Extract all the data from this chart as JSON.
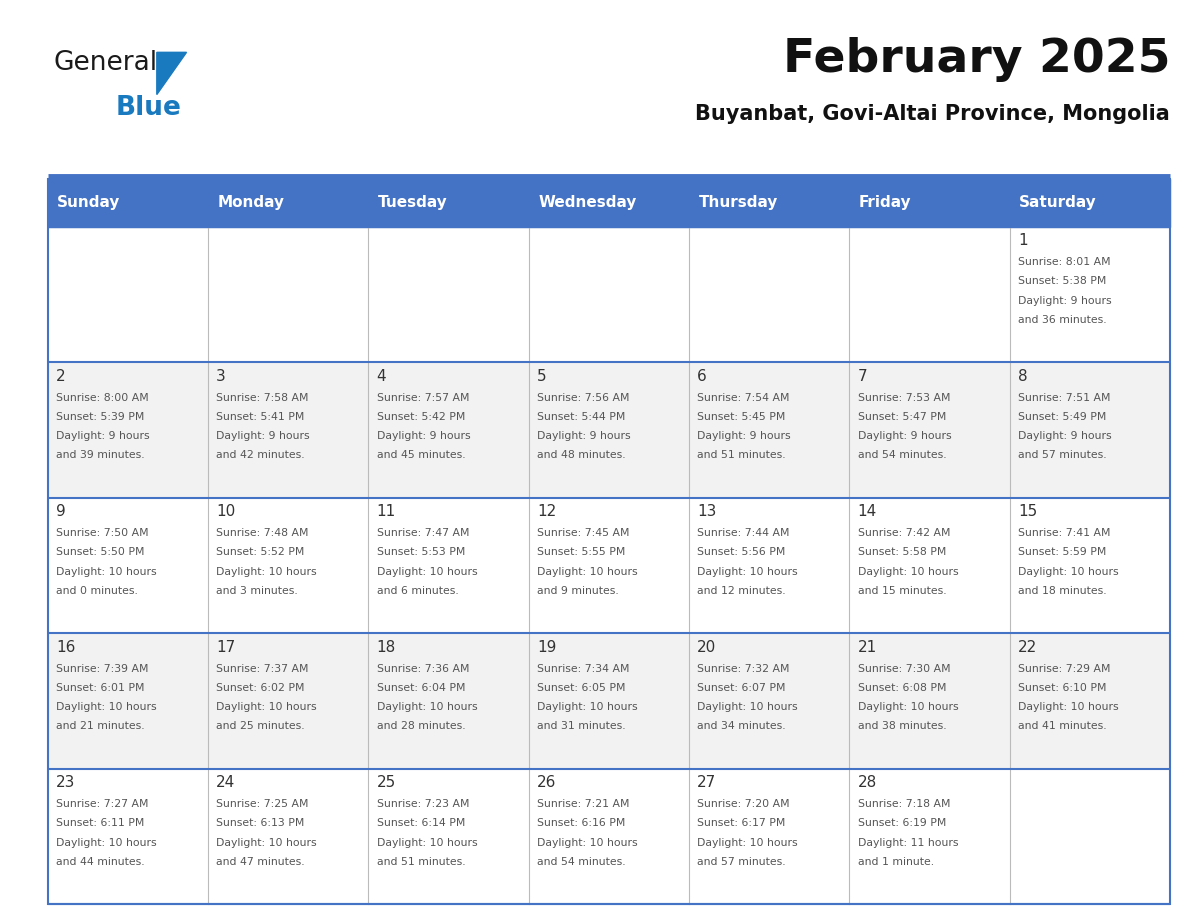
{
  "title": "February 2025",
  "subtitle": "Buyanbat, Govi-Altai Province, Mongolia",
  "days_of_week": [
    "Sunday",
    "Monday",
    "Tuesday",
    "Wednesday",
    "Thursday",
    "Friday",
    "Saturday"
  ],
  "header_bg": "#4472C4",
  "header_text_color": "#FFFFFF",
  "cell_bg_odd": "#F2F2F2",
  "cell_bg_even": "#FFFFFF",
  "border_color": "#4472C4",
  "text_color": "#555555",
  "day_number_color": "#333333",
  "calendar": [
    [
      null,
      null,
      null,
      null,
      null,
      null,
      1
    ],
    [
      2,
      3,
      4,
      5,
      6,
      7,
      8
    ],
    [
      9,
      10,
      11,
      12,
      13,
      14,
      15
    ],
    [
      16,
      17,
      18,
      19,
      20,
      21,
      22
    ],
    [
      23,
      24,
      25,
      26,
      27,
      28,
      null
    ]
  ],
  "sunrise_data": {
    "1": {
      "sunrise": "8:01 AM",
      "sunset": "5:38 PM",
      "daylight_line1": "Daylight: 9 hours",
      "daylight_line2": "and 36 minutes."
    },
    "2": {
      "sunrise": "8:00 AM",
      "sunset": "5:39 PM",
      "daylight_line1": "Daylight: 9 hours",
      "daylight_line2": "and 39 minutes."
    },
    "3": {
      "sunrise": "7:58 AM",
      "sunset": "5:41 PM",
      "daylight_line1": "Daylight: 9 hours",
      "daylight_line2": "and 42 minutes."
    },
    "4": {
      "sunrise": "7:57 AM",
      "sunset": "5:42 PM",
      "daylight_line1": "Daylight: 9 hours",
      "daylight_line2": "and 45 minutes."
    },
    "5": {
      "sunrise": "7:56 AM",
      "sunset": "5:44 PM",
      "daylight_line1": "Daylight: 9 hours",
      "daylight_line2": "and 48 minutes."
    },
    "6": {
      "sunrise": "7:54 AM",
      "sunset": "5:45 PM",
      "daylight_line1": "Daylight: 9 hours",
      "daylight_line2": "and 51 minutes."
    },
    "7": {
      "sunrise": "7:53 AM",
      "sunset": "5:47 PM",
      "daylight_line1": "Daylight: 9 hours",
      "daylight_line2": "and 54 minutes."
    },
    "8": {
      "sunrise": "7:51 AM",
      "sunset": "5:49 PM",
      "daylight_line1": "Daylight: 9 hours",
      "daylight_line2": "and 57 minutes."
    },
    "9": {
      "sunrise": "7:50 AM",
      "sunset": "5:50 PM",
      "daylight_line1": "Daylight: 10 hours",
      "daylight_line2": "and 0 minutes."
    },
    "10": {
      "sunrise": "7:48 AM",
      "sunset": "5:52 PM",
      "daylight_line1": "Daylight: 10 hours",
      "daylight_line2": "and 3 minutes."
    },
    "11": {
      "sunrise": "7:47 AM",
      "sunset": "5:53 PM",
      "daylight_line1": "Daylight: 10 hours",
      "daylight_line2": "and 6 minutes."
    },
    "12": {
      "sunrise": "7:45 AM",
      "sunset": "5:55 PM",
      "daylight_line1": "Daylight: 10 hours",
      "daylight_line2": "and 9 minutes."
    },
    "13": {
      "sunrise": "7:44 AM",
      "sunset": "5:56 PM",
      "daylight_line1": "Daylight: 10 hours",
      "daylight_line2": "and 12 minutes."
    },
    "14": {
      "sunrise": "7:42 AM",
      "sunset": "5:58 PM",
      "daylight_line1": "Daylight: 10 hours",
      "daylight_line2": "and 15 minutes."
    },
    "15": {
      "sunrise": "7:41 AM",
      "sunset": "5:59 PM",
      "daylight_line1": "Daylight: 10 hours",
      "daylight_line2": "and 18 minutes."
    },
    "16": {
      "sunrise": "7:39 AM",
      "sunset": "6:01 PM",
      "daylight_line1": "Daylight: 10 hours",
      "daylight_line2": "and 21 minutes."
    },
    "17": {
      "sunrise": "7:37 AM",
      "sunset": "6:02 PM",
      "daylight_line1": "Daylight: 10 hours",
      "daylight_line2": "and 25 minutes."
    },
    "18": {
      "sunrise": "7:36 AM",
      "sunset": "6:04 PM",
      "daylight_line1": "Daylight: 10 hours",
      "daylight_line2": "and 28 minutes."
    },
    "19": {
      "sunrise": "7:34 AM",
      "sunset": "6:05 PM",
      "daylight_line1": "Daylight: 10 hours",
      "daylight_line2": "and 31 minutes."
    },
    "20": {
      "sunrise": "7:32 AM",
      "sunset": "6:07 PM",
      "daylight_line1": "Daylight: 10 hours",
      "daylight_line2": "and 34 minutes."
    },
    "21": {
      "sunrise": "7:30 AM",
      "sunset": "6:08 PM",
      "daylight_line1": "Daylight: 10 hours",
      "daylight_line2": "and 38 minutes."
    },
    "22": {
      "sunrise": "7:29 AM",
      "sunset": "6:10 PM",
      "daylight_line1": "Daylight: 10 hours",
      "daylight_line2": "and 41 minutes."
    },
    "23": {
      "sunrise": "7:27 AM",
      "sunset": "6:11 PM",
      "daylight_line1": "Daylight: 10 hours",
      "daylight_line2": "and 44 minutes."
    },
    "24": {
      "sunrise": "7:25 AM",
      "sunset": "6:13 PM",
      "daylight_line1": "Daylight: 10 hours",
      "daylight_line2": "and 47 minutes."
    },
    "25": {
      "sunrise": "7:23 AM",
      "sunset": "6:14 PM",
      "daylight_line1": "Daylight: 10 hours",
      "daylight_line2": "and 51 minutes."
    },
    "26": {
      "sunrise": "7:21 AM",
      "sunset": "6:16 PM",
      "daylight_line1": "Daylight: 10 hours",
      "daylight_line2": "and 54 minutes."
    },
    "27": {
      "sunrise": "7:20 AM",
      "sunset": "6:17 PM",
      "daylight_line1": "Daylight: 10 hours",
      "daylight_line2": "and 57 minutes."
    },
    "28": {
      "sunrise": "7:18 AM",
      "sunset": "6:19 PM",
      "daylight_line1": "Daylight: 11 hours",
      "daylight_line2": "and 1 minute."
    }
  },
  "logo_text1": "General",
  "logo_text2": "Blue",
  "logo_color1": "#1a1a1a",
  "logo_color2": "#1a7abf",
  "logo_triangle_color": "#1a7abf"
}
